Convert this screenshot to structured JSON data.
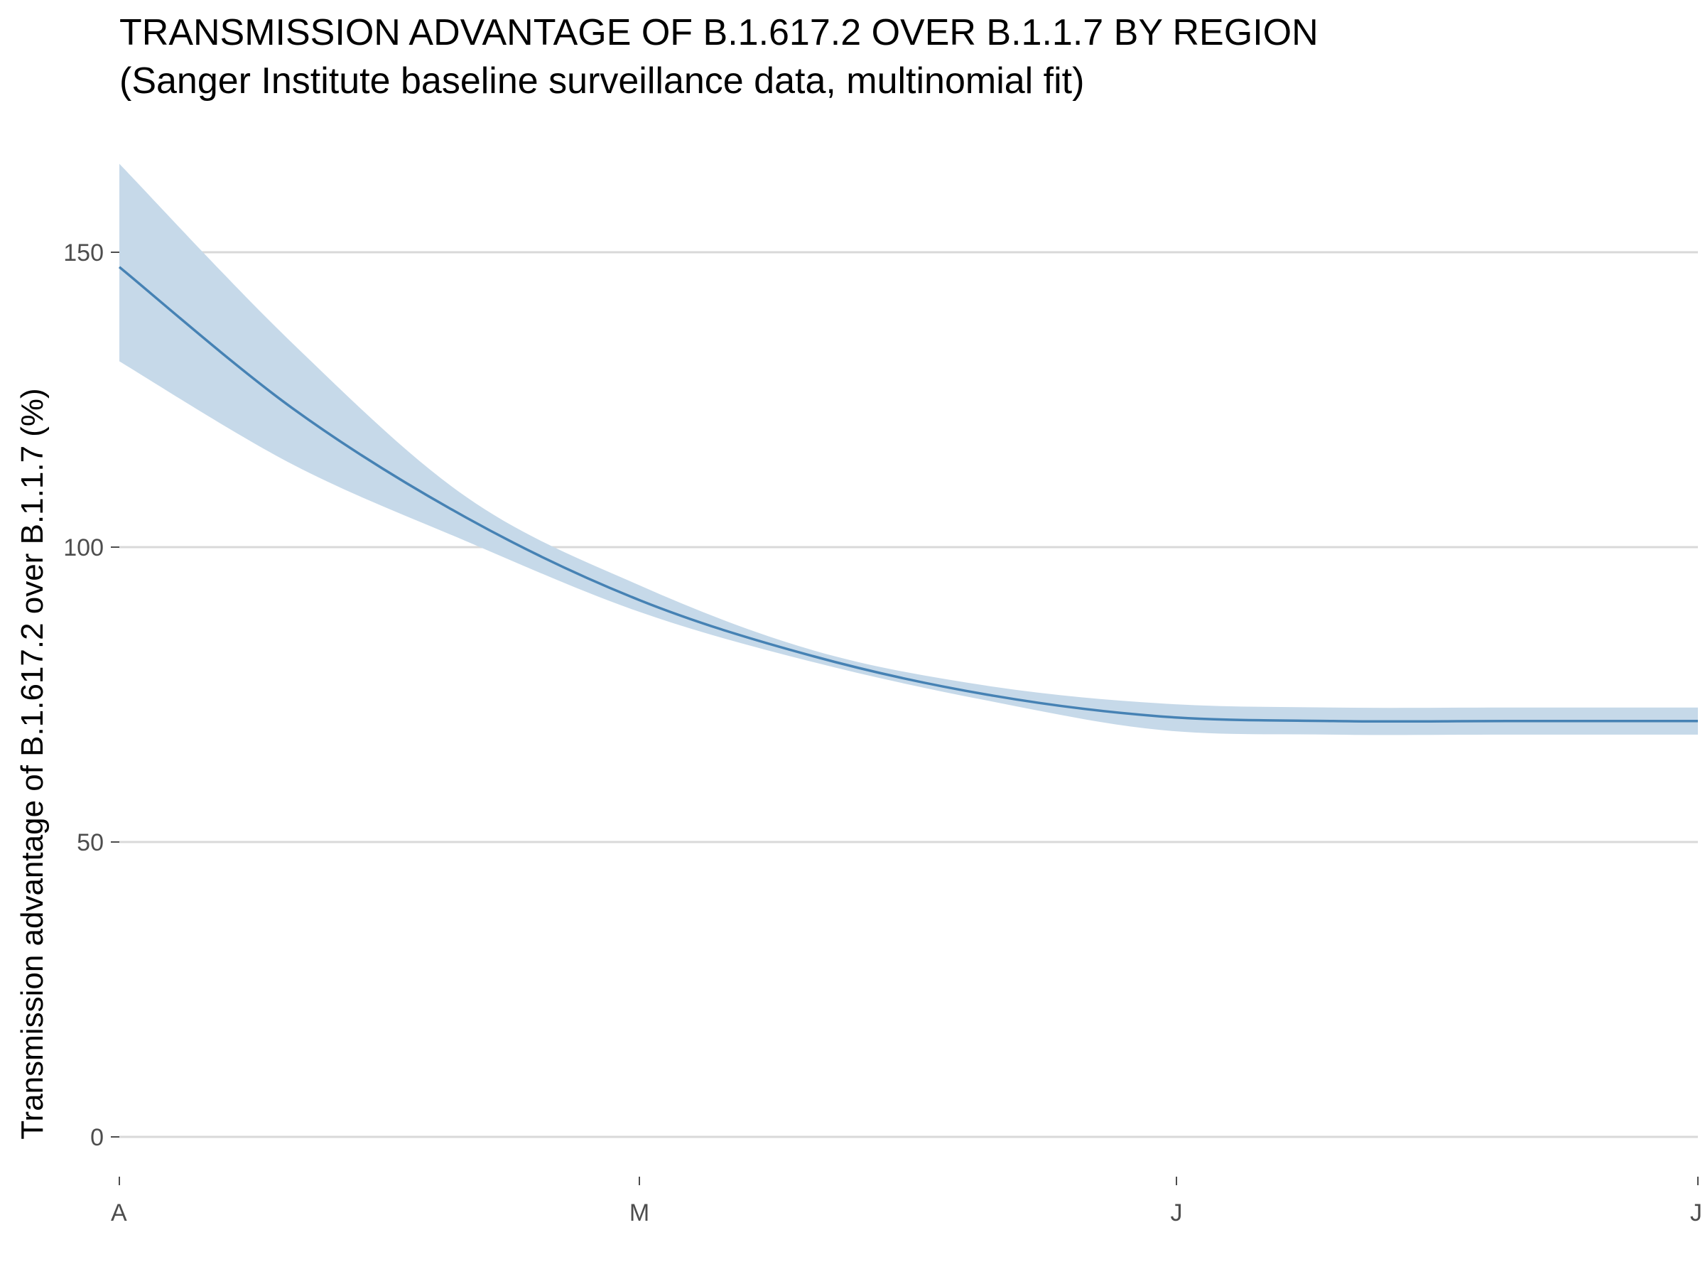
{
  "chart_data": {
    "type": "line",
    "title": "TRANSMISSION ADVANTAGE OF B.1.617.2 OVER B.1.1.7 BY REGION",
    "subtitle": "(Sanger Institute baseline surveillance data, multinomial fit)",
    "xlabel": "",
    "ylabel": "Transmission advantage of B.1.617.2 over B.1.1.7 (%)",
    "x_ticks": [
      "A",
      "M",
      "J",
      "J"
    ],
    "y_ticks": [
      0,
      50,
      100,
      150
    ],
    "ylim": [
      -5,
      165
    ],
    "grid": true,
    "legend": "none",
    "colors": {
      "line": "#4682b4",
      "band": "#c6d9e9",
      "grid": "#d9d9d9",
      "tick": "#4d4d4d"
    },
    "series": [
      {
        "x": [
          0,
          10,
          20,
          30,
          40,
          50,
          60,
          70,
          80,
          91
        ],
        "values": [
          147.5,
          123.5,
          105,
          91,
          81.5,
          75,
          71.3,
          70.5,
          70.5,
          70.5
        ],
        "lower": [
          131.5,
          114,
          101,
          89,
          80.5,
          74,
          69,
          68.2,
          68.2,
          68.2
        ],
        "upper": [
          165,
          134.5,
          108.5,
          93.5,
          82.5,
          76.5,
          73.5,
          72.8,
          72.8,
          72.8
        ]
      }
    ]
  }
}
